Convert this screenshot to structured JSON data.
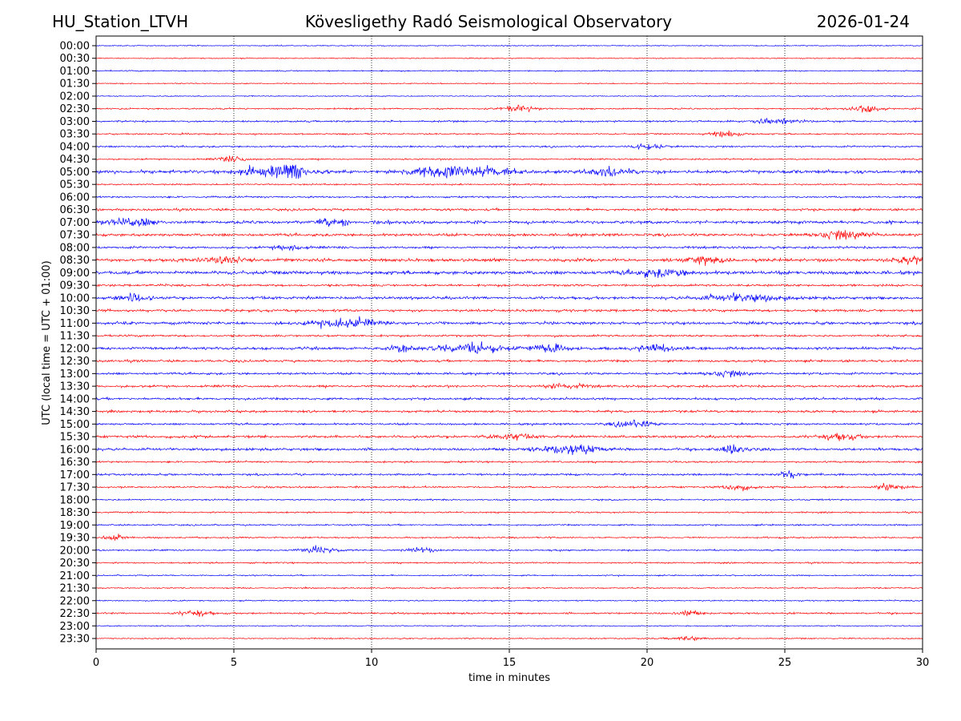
{
  "header": {
    "station": "HU_Station_LTVH",
    "observatory": "Kövesligethy Radó Seismological Observatory",
    "date": "2026-01-24"
  },
  "chart_data": {
    "type": "line",
    "title": "Kövesligethy Radó Seismological Observatory",
    "xlabel": "time in minutes",
    "ylabel": "UTC (local time = UTC + 01:00)",
    "xlim": [
      0,
      30
    ],
    "xticks": [
      0,
      5,
      10,
      15,
      20,
      25,
      30
    ],
    "grid": "vertical dotted at x ticks",
    "colors": [
      "#0000ff",
      "#ff0000"
    ],
    "rows": [
      "00:00",
      "00:30",
      "01:00",
      "01:30",
      "02:00",
      "02:30",
      "03:00",
      "03:30",
      "04:00",
      "04:30",
      "05:00",
      "05:30",
      "06:00",
      "06:30",
      "07:00",
      "07:30",
      "08:00",
      "08:30",
      "09:00",
      "09:30",
      "10:00",
      "10:30",
      "11:00",
      "11:30",
      "12:00",
      "12:30",
      "13:00",
      "13:30",
      "14:00",
      "14:30",
      "15:00",
      "15:30",
      "16:00",
      "16:30",
      "17:00",
      "17:30",
      "18:00",
      "18:30",
      "19:00",
      "19:30",
      "20:00",
      "20:30",
      "21:00",
      "21:30",
      "22:00",
      "22:30",
      "23:00",
      "23:30"
    ],
    "noise_level": [
      0.4,
      0.4,
      0.5,
      0.4,
      0.4,
      0.6,
      0.7,
      0.6,
      0.7,
      0.6,
      1.3,
      0.6,
      0.7,
      0.9,
      1.2,
      1.1,
      0.9,
      1.2,
      1.4,
      0.9,
      1.1,
      1.0,
      1.1,
      0.8,
      1.1,
      0.9,
      0.9,
      0.9,
      0.9,
      0.9,
      0.8,
      1.0,
      1.0,
      0.7,
      0.8,
      0.7,
      0.6,
      0.6,
      0.6,
      0.6,
      0.6,
      0.6,
      0.5,
      0.5,
      0.5,
      0.7,
      0.4,
      0.5
    ],
    "events": [
      {
        "row": "02:30",
        "minute": 15.3,
        "amp": 3,
        "width": 1.5
      },
      {
        "row": "02:30",
        "minute": 28.0,
        "amp": 3,
        "width": 1.5
      },
      {
        "row": "03:00",
        "minute": 24.7,
        "amp": 3,
        "width": 2
      },
      {
        "row": "03:30",
        "minute": 22.9,
        "amp": 3,
        "width": 1.5
      },
      {
        "row": "04:00",
        "minute": 20.0,
        "amp": 3,
        "width": 1.5
      },
      {
        "row": "04:30",
        "minute": 5.0,
        "amp": 2.5,
        "width": 1.5
      },
      {
        "row": "05:00",
        "minute": 6.3,
        "amp": 5,
        "width": 3
      },
      {
        "row": "05:00",
        "minute": 7.2,
        "amp": 6,
        "width": 1
      },
      {
        "row": "05:00",
        "minute": 12.8,
        "amp": 6,
        "width": 3
      },
      {
        "row": "05:00",
        "minute": 14.5,
        "amp": 3,
        "width": 2
      },
      {
        "row": "05:00",
        "minute": 18.6,
        "amp": 4,
        "width": 2
      },
      {
        "row": "07:00",
        "minute": 1.3,
        "amp": 4,
        "width": 2
      },
      {
        "row": "07:00",
        "minute": 8.6,
        "amp": 4,
        "width": 1.5
      },
      {
        "row": "07:30",
        "minute": 27.2,
        "amp": 4,
        "width": 2.5
      },
      {
        "row": "08:00",
        "minute": 7.0,
        "amp": 2.5,
        "width": 1.5
      },
      {
        "row": "08:30",
        "minute": 4.6,
        "amp": 3.5,
        "width": 2
      },
      {
        "row": "08:30",
        "minute": 22.0,
        "amp": 3,
        "width": 2
      },
      {
        "row": "08:30",
        "minute": 29.5,
        "amp": 3.5,
        "width": 1.5
      },
      {
        "row": "09:00",
        "minute": 20.5,
        "amp": 3,
        "width": 3
      },
      {
        "row": "10:00",
        "minute": 1.3,
        "amp": 4,
        "width": 1.5
      },
      {
        "row": "10:00",
        "minute": 23.5,
        "amp": 3,
        "width": 4
      },
      {
        "row": "11:00",
        "minute": 9.0,
        "amp": 4,
        "width": 3
      },
      {
        "row": "12:00",
        "minute": 11.0,
        "amp": 3,
        "width": 1.5
      },
      {
        "row": "12:00",
        "minute": 13.6,
        "amp": 4.5,
        "width": 3
      },
      {
        "row": "12:00",
        "minute": 16.5,
        "amp": 3.5,
        "width": 2
      },
      {
        "row": "12:00",
        "minute": 20.3,
        "amp": 3,
        "width": 2
      },
      {
        "row": "13:00",
        "minute": 23.0,
        "amp": 2.5,
        "width": 2
      },
      {
        "row": "13:30",
        "minute": 17.0,
        "amp": 2.5,
        "width": 2
      },
      {
        "row": "15:00",
        "minute": 19.5,
        "amp": 3,
        "width": 2
      },
      {
        "row": "15:30",
        "minute": 15.0,
        "amp": 2.5,
        "width": 2
      },
      {
        "row": "15:30",
        "minute": 27.0,
        "amp": 3,
        "width": 2
      },
      {
        "row": "16:00",
        "minute": 17.2,
        "amp": 4.5,
        "width": 3
      },
      {
        "row": "16:00",
        "minute": 23.2,
        "amp": 3.5,
        "width": 1.5
      },
      {
        "row": "17:00",
        "minute": 25.2,
        "amp": 3.5,
        "width": 1
      },
      {
        "row": "17:30",
        "minute": 23.3,
        "amp": 2.5,
        "width": 1.5
      },
      {
        "row": "17:30",
        "minute": 28.8,
        "amp": 2.5,
        "width": 1.5
      },
      {
        "row": "19:30",
        "minute": 0.7,
        "amp": 3,
        "width": 1
      },
      {
        "row": "20:00",
        "minute": 8.0,
        "amp": 2.5,
        "width": 2
      },
      {
        "row": "20:00",
        "minute": 11.8,
        "amp": 2,
        "width": 1.5
      },
      {
        "row": "22:30",
        "minute": 3.6,
        "amp": 3,
        "width": 1.5
      },
      {
        "row": "22:30",
        "minute": 21.5,
        "amp": 2.5,
        "width": 1
      },
      {
        "row": "23:30",
        "minute": 21.5,
        "amp": 1.5,
        "width": 2
      }
    ]
  }
}
